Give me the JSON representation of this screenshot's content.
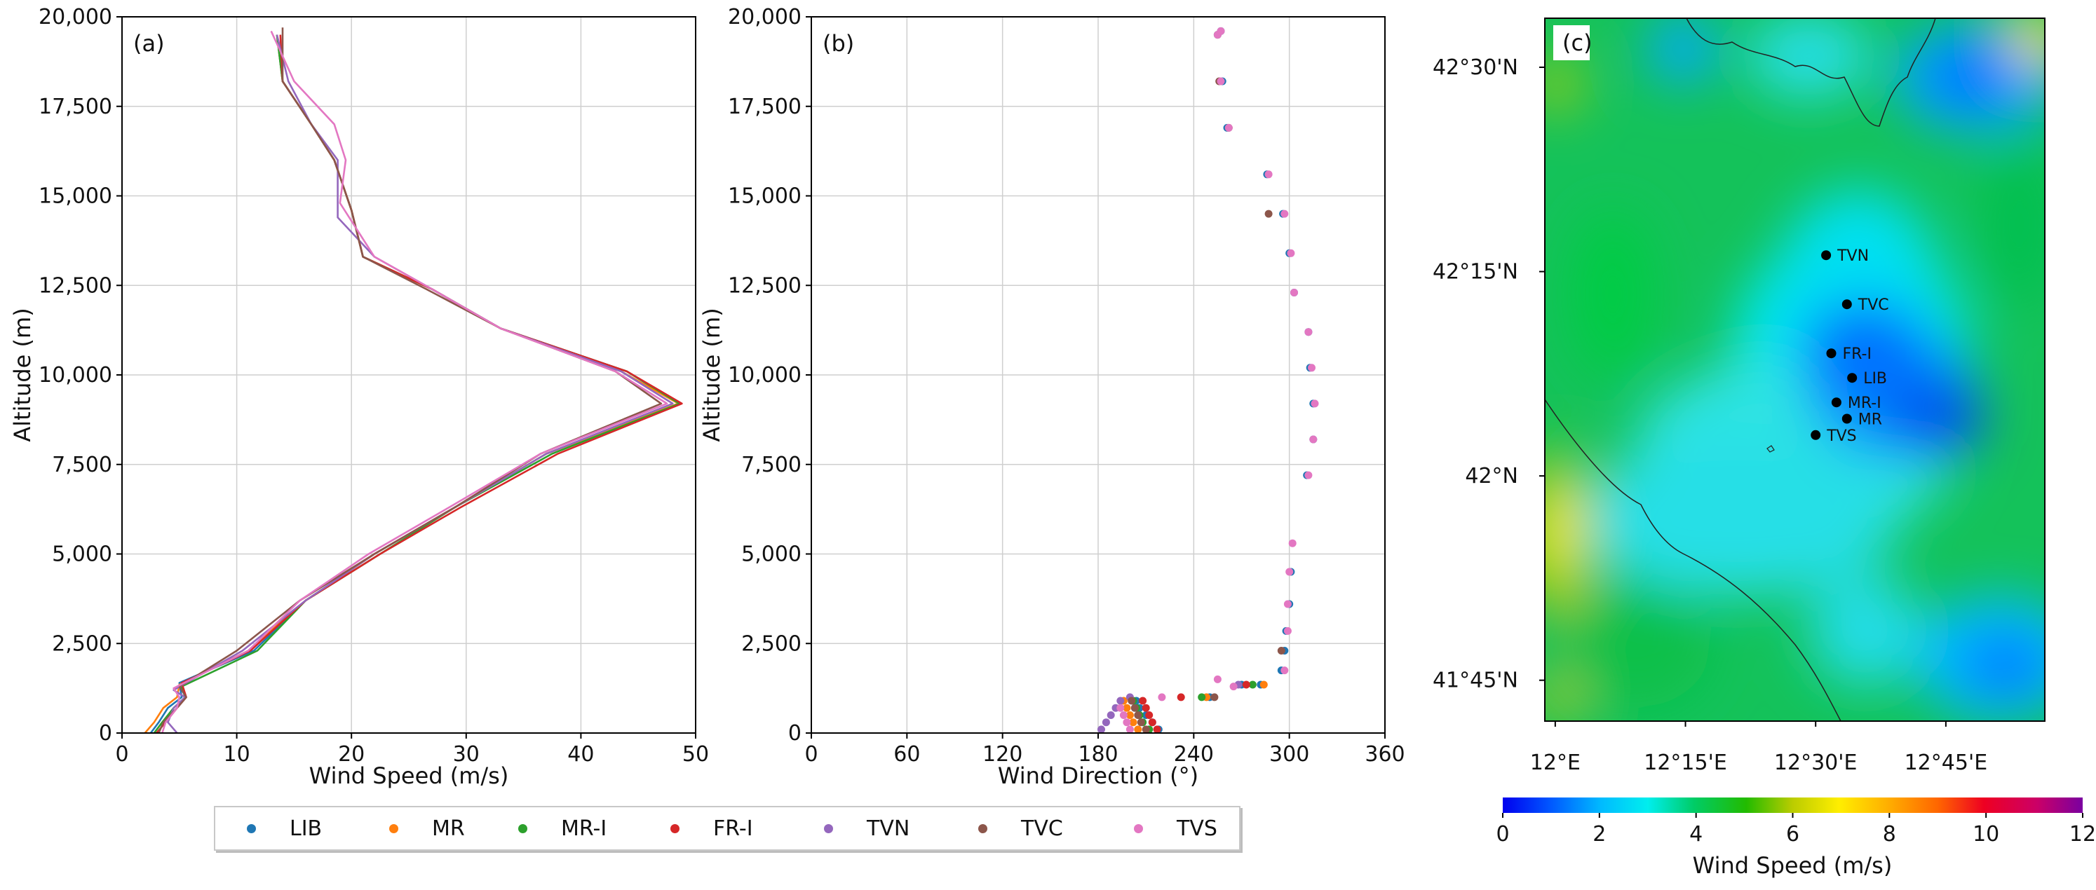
{
  "chart_data": [
    {
      "panel": "(a)",
      "type": "line",
      "xlabel": "Wind Speed (m/s)",
      "ylabel": "Altitude (m)",
      "xlim": [
        0,
        50
      ],
      "ylim": [
        0,
        20000
      ],
      "xticks": [
        "0",
        "10",
        "20",
        "30",
        "40",
        "50"
      ],
      "yticks": [
        "0",
        "2,500",
        "5,000",
        "7,500",
        "10,000",
        "12,500",
        "15,000",
        "17,500",
        "20,000"
      ],
      "grid": true,
      "series": [
        {
          "name": "LIB",
          "color": "#1f77b4",
          "x": [
            2.5,
            3.2,
            4.0,
            5.2,
            5.0,
            11.5,
            16,
            22,
            29,
            37,
            48.5,
            44,
            33,
            27,
            21,
            20,
            18.5,
            16.5,
            14,
            13.5
          ],
          "y": [
            0,
            300,
            700,
            1000,
            1400,
            2300,
            3700,
            5000,
            6300,
            7800,
            9200,
            10100,
            11300,
            12400,
            13300,
            14600,
            16000,
            17000,
            18200,
            19500
          ]
        },
        {
          "name": "MR",
          "color": "#ff7f0e",
          "x": [
            2.0,
            2.8,
            3.6,
            4.8,
            5.0,
            11.0,
            16,
            22,
            29,
            37,
            48.5,
            43.5,
            33,
            27,
            21,
            20,
            18.5,
            16.5,
            14,
            13.5
          ],
          "y": [
            0,
            300,
            700,
            1000,
            1350,
            2300,
            3700,
            5000,
            6300,
            7800,
            9200,
            10100,
            11300,
            12400,
            13300,
            14600,
            16000,
            17000,
            18200,
            19500
          ]
        },
        {
          "name": "MR-I",
          "color": "#2ca02c",
          "x": [
            2.8,
            3.5,
            4.5,
            5.5,
            5.2,
            11.8,
            16,
            22.5,
            29,
            37.5,
            48.6,
            44,
            33,
            27,
            21,
            20,
            18.5,
            16.5,
            14,
            13.5
          ],
          "y": [
            0,
            300,
            700,
            1000,
            1300,
            2300,
            3700,
            5000,
            6300,
            7800,
            9200,
            10100,
            11300,
            12400,
            13300,
            14600,
            16000,
            17000,
            18200,
            19500
          ]
        },
        {
          "name": "FR-I",
          "color": "#d62728",
          "x": [
            3.0,
            3.8,
            4.8,
            5.6,
            5.2,
            11.2,
            16,
            22.5,
            29.5,
            38,
            48.8,
            44,
            33,
            27,
            21,
            20,
            18.5,
            16.5,
            14,
            13.8
          ],
          "y": [
            0,
            300,
            700,
            1000,
            1400,
            2300,
            3700,
            5000,
            6300,
            7800,
            9200,
            10100,
            11300,
            12400,
            13300,
            14600,
            16000,
            17000,
            18200,
            19500
          ]
        },
        {
          "name": "TVN",
          "color": "#9467bd",
          "x": [
            4.8,
            4.0,
            4.5,
            5.5,
            4.5,
            10.5,
            16,
            22,
            29,
            37,
            48.0,
            43.5,
            33,
            27,
            22,
            18.8,
            18.8,
            16.5,
            14.5,
            13.5
          ],
          "y": [
            0,
            300,
            700,
            1000,
            1200,
            2300,
            3700,
            5000,
            6300,
            7800,
            9200,
            10100,
            11300,
            12400,
            13300,
            14400,
            16000,
            17000,
            18200,
            19500
          ]
        },
        {
          "name": "TVC",
          "color": "#8c564b",
          "x": [
            3.2,
            3.6,
            4.8,
            5.6,
            5.0,
            10.0,
            15.5,
            22,
            29,
            36.5,
            47.0,
            43,
            33,
            26.5,
            21,
            20,
            18.5,
            16.5,
            14,
            14.0
          ],
          "y": [
            0,
            300,
            700,
            1000,
            1300,
            2300,
            3700,
            5000,
            6300,
            7800,
            9200,
            10100,
            11300,
            12400,
            13300,
            14600,
            16000,
            17000,
            18200,
            19700
          ]
        },
        {
          "name": "TVS",
          "color": "#e377c2",
          "x": [
            3.5,
            3.8,
            4.8,
            5.0,
            4.5,
            11.0,
            15.5,
            21.5,
            28.5,
            36.5,
            47.5,
            43,
            33,
            27,
            22,
            19.0,
            19.5,
            18.5,
            15,
            13.0
          ],
          "y": [
            0,
            300,
            700,
            1000,
            1250,
            2300,
            3700,
            5000,
            6300,
            7800,
            9200,
            10100,
            11300,
            12400,
            13300,
            14800,
            16000,
            17000,
            18200,
            19600
          ]
        }
      ]
    },
    {
      "panel": "(b)",
      "type": "scatter",
      "xlabel": "Wind Direction (°)",
      "ylabel": "Altitude (m)",
      "xlim": [
        0,
        360
      ],
      "ylim": [
        0,
        20000
      ],
      "xticks": [
        "0",
        "60",
        "120",
        "180",
        "240",
        "300",
        "360"
      ],
      "yticks": [
        "0",
        "2,500",
        "5,000",
        "7,500",
        "10,000",
        "12,500",
        "15,000",
        "17,500",
        "20,000"
      ],
      "grid": true,
      "series": [
        {
          "name": "LIB",
          "color": "#1f77b4",
          "x": [
            218,
            214,
            210,
            206,
            204,
            250,
            270,
            282,
            295,
            297,
            298,
            300,
            301,
            311,
            315,
            315,
            313,
            312,
            303,
            300,
            296,
            286,
            261,
            258,
            255,
            257
          ],
          "y": [
            100,
            300,
            500,
            700,
            900,
            1000,
            1350,
            1350,
            1750,
            2300,
            2850,
            3600,
            4500,
            7200,
            8200,
            9200,
            10200,
            11200,
            12300,
            13400,
            14500,
            15600,
            16900,
            18200,
            19500,
            19600
          ]
        },
        {
          "name": "MR",
          "color": "#ff7f0e",
          "x": [
            205,
            202,
            200,
            198,
            196,
            248,
            284
          ],
          "y": [
            100,
            300,
            500,
            700,
            900,
            1000,
            1350
          ]
        },
        {
          "name": "MR-I",
          "color": "#2ca02c",
          "x": [
            212,
            208,
            206,
            204,
            202,
            245,
            277
          ],
          "y": [
            100,
            300,
            500,
            700,
            900,
            1000,
            1350
          ]
        },
        {
          "name": "FR-I",
          "color": "#d62728",
          "x": [
            217,
            214,
            212,
            210,
            208,
            232,
            273
          ],
          "y": [
            100,
            300,
            500,
            700,
            900,
            1000,
            1350
          ]
        },
        {
          "name": "TVN",
          "color": "#9467bd",
          "x": [
            182,
            185,
            188,
            191,
            194,
            200,
            268
          ],
          "y": [
            100,
            300,
            500,
            700,
            900,
            1000,
            1350
          ]
        },
        {
          "name": "TVC",
          "color": "#8c564b",
          "x": [
            210,
            207,
            205,
            203,
            201,
            253,
            295,
            287,
            262,
            256,
            255
          ],
          "y": [
            100,
            300,
            500,
            700,
            900,
            1000,
            2300,
            14500,
            16900,
            18200,
            19500
          ]
        },
        {
          "name": "TVS",
          "color": "#e377c2",
          "x": [
            200,
            198,
            196,
            194,
            220,
            255,
            265,
            297,
            299,
            299,
            300,
            302,
            312,
            315,
            316,
            314,
            312,
            303,
            301,
            297,
            287,
            262,
            257,
            255,
            257
          ],
          "y": [
            100,
            300,
            500,
            700,
            1000,
            1500,
            1300,
            1750,
            2850,
            3600,
            4500,
            5300,
            7200,
            8200,
            9200,
            10200,
            11200,
            12300,
            13400,
            14500,
            15600,
            16900,
            18200,
            19500,
            19600
          ]
        }
      ]
    },
    {
      "panel": "(c)",
      "type": "heatmap",
      "colorbar_label": "Wind Speed (m/s)",
      "colorbar_ticks": [
        "0",
        "2",
        "4",
        "6",
        "8",
        "10",
        "12"
      ],
      "colorbar_range": [
        0,
        12
      ],
      "colorbar_colors": [
        "#0000ee",
        "#0066ff",
        "#00ccff",
        "#00eedd",
        "#00cc66",
        "#33cc00",
        "#cccc00",
        "#ffee00",
        "#ffaa00",
        "#ff6600",
        "#ee0022",
        "#cc0066",
        "#880099"
      ],
      "lon_ticks": [
        "12°E",
        "12°15'E",
        "12°30'E",
        "12°45'E"
      ],
      "lat_ticks": [
        "42°30'N",
        "42°15'N",
        "42°N",
        "41°45'N"
      ],
      "stations": [
        {
          "name": "TVN",
          "lon": 12.52,
          "lat": 42.27
        },
        {
          "name": "TVC",
          "lon": 12.56,
          "lat": 42.21
        },
        {
          "name": "FR-I",
          "lon": 12.53,
          "lat": 42.15
        },
        {
          "name": "LIB",
          "lon": 12.57,
          "lat": 42.12
        },
        {
          "name": "MR-I",
          "lon": 12.54,
          "lat": 42.09
        },
        {
          "name": "MR",
          "lon": 12.56,
          "lat": 42.07
        },
        {
          "name": "TVS",
          "lon": 12.5,
          "lat": 42.05
        }
      ]
    }
  ]
}
